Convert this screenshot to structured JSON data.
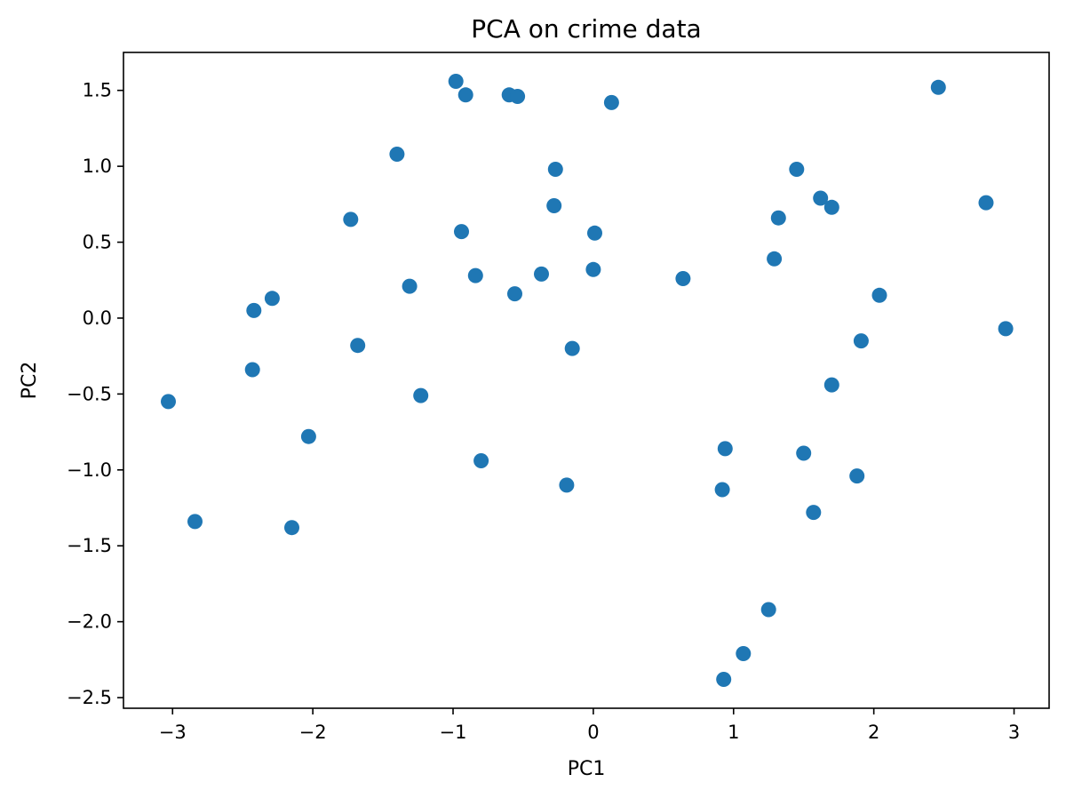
{
  "chart_data": {
    "type": "scatter",
    "title": "PCA on crime data",
    "xlabel": "PC1",
    "ylabel": "PC2",
    "xlim": [
      -3.35,
      3.25
    ],
    "ylim": [
      -2.57,
      1.75
    ],
    "xticks": [
      -3,
      -2,
      -1,
      0,
      1,
      2,
      3
    ],
    "xtick_labels": [
      "−3",
      "−2",
      "−1",
      "0",
      "1",
      "2",
      "3"
    ],
    "yticks": [
      -2.5,
      -2.0,
      -1.5,
      -1.0,
      -0.5,
      0.0,
      0.5,
      1.0,
      1.5
    ],
    "ytick_labels": [
      "−2.5",
      "−2.0",
      "−1.5",
      "−1.0",
      "−0.5",
      "0.0",
      "0.5",
      "1.0",
      "1.5"
    ],
    "grid": false,
    "marker_color": "#1f77b4",
    "points": [
      {
        "x": -0.98,
        "y": 1.56
      },
      {
        "x": -0.91,
        "y": 1.47
      },
      {
        "x": -0.6,
        "y": 1.47
      },
      {
        "x": -0.54,
        "y": 1.46
      },
      {
        "x": 0.13,
        "y": 1.42
      },
      {
        "x": 2.46,
        "y": 1.52
      },
      {
        "x": -1.4,
        "y": 1.08
      },
      {
        "x": -0.27,
        "y": 0.98
      },
      {
        "x": 1.45,
        "y": 0.98
      },
      {
        "x": 1.62,
        "y": 0.79
      },
      {
        "x": 1.7,
        "y": 0.73
      },
      {
        "x": 2.8,
        "y": 0.76
      },
      {
        "x": -0.28,
        "y": 0.74
      },
      {
        "x": 1.32,
        "y": 0.66
      },
      {
        "x": -1.73,
        "y": 0.65
      },
      {
        "x": -0.94,
        "y": 0.57
      },
      {
        "x": 0.01,
        "y": 0.56
      },
      {
        "x": 1.29,
        "y": 0.39
      },
      {
        "x": 0.0,
        "y": 0.32
      },
      {
        "x": -0.37,
        "y": 0.29
      },
      {
        "x": -0.84,
        "y": 0.28
      },
      {
        "x": 0.64,
        "y": 0.26
      },
      {
        "x": -1.31,
        "y": 0.21
      },
      {
        "x": -0.56,
        "y": 0.16
      },
      {
        "x": 2.04,
        "y": 0.15
      },
      {
        "x": -2.29,
        "y": 0.13
      },
      {
        "x": -2.42,
        "y": 0.05
      },
      {
        "x": 2.94,
        "y": -0.07
      },
      {
        "x": 1.91,
        "y": -0.15
      },
      {
        "x": -1.68,
        "y": -0.18
      },
      {
        "x": -0.15,
        "y": -0.2
      },
      {
        "x": -2.43,
        "y": -0.34
      },
      {
        "x": 1.7,
        "y": -0.44
      },
      {
        "x": -1.23,
        "y": -0.51
      },
      {
        "x": -3.03,
        "y": -0.55
      },
      {
        "x": -2.03,
        "y": -0.78
      },
      {
        "x": 0.94,
        "y": -0.86
      },
      {
        "x": 1.5,
        "y": -0.89
      },
      {
        "x": -0.8,
        "y": -0.94
      },
      {
        "x": 1.88,
        "y": -1.04
      },
      {
        "x": -0.19,
        "y": -1.1
      },
      {
        "x": 0.92,
        "y": -1.13
      },
      {
        "x": 1.57,
        "y": -1.28
      },
      {
        "x": -2.84,
        "y": -1.34
      },
      {
        "x": -2.15,
        "y": -1.38
      },
      {
        "x": 1.25,
        "y": -1.92
      },
      {
        "x": 1.07,
        "y": -2.21
      },
      {
        "x": 0.93,
        "y": -2.38
      }
    ]
  }
}
